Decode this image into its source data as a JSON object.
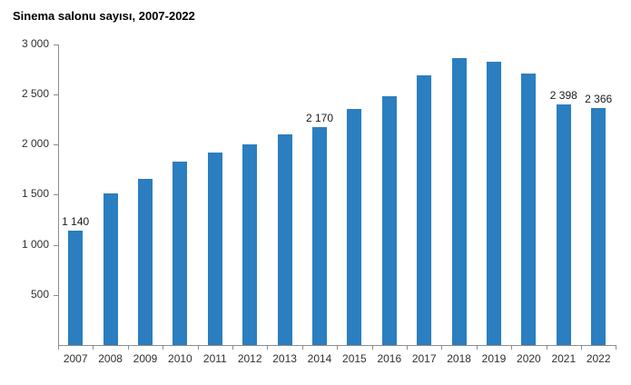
{
  "chart_data": {
    "type": "bar",
    "title": "Sinema salonu sayısı, 2007-2022",
    "categories": [
      "2007",
      "2008",
      "2009",
      "2010",
      "2011",
      "2012",
      "2013",
      "2014",
      "2015",
      "2016",
      "2017",
      "2018",
      "2019",
      "2020",
      "2021",
      "2022"
    ],
    "values": [
      1140,
      1514,
      1656,
      1834,
      1917,
      1998,
      2102,
      2170,
      2356,
      2483,
      2692,
      2858,
      2830,
      2706,
      2398,
      2366
    ],
    "value_labels": [
      {
        "index": 0,
        "text": "1 140"
      },
      {
        "index": 7,
        "text": "2 170"
      },
      {
        "index": 14,
        "text": "2 398"
      },
      {
        "index": 15,
        "text": "2 366"
      }
    ],
    "yticks": [
      {
        "value": 500,
        "label": "500"
      },
      {
        "value": 1000,
        "label": "1 000"
      },
      {
        "value": 1500,
        "label": "1 500"
      },
      {
        "value": 2000,
        "label": "2 000"
      },
      {
        "value": 2500,
        "label": "2 500"
      },
      {
        "value": 3000,
        "label": "3 000"
      }
    ],
    "ylim": [
      0,
      3000
    ],
    "xlabel": "",
    "ylabel": "",
    "grid": false,
    "legend": false,
    "bar_color": "#2b7ebf",
    "axis_color": "#8c8c8c",
    "text_color": "#303030"
  }
}
